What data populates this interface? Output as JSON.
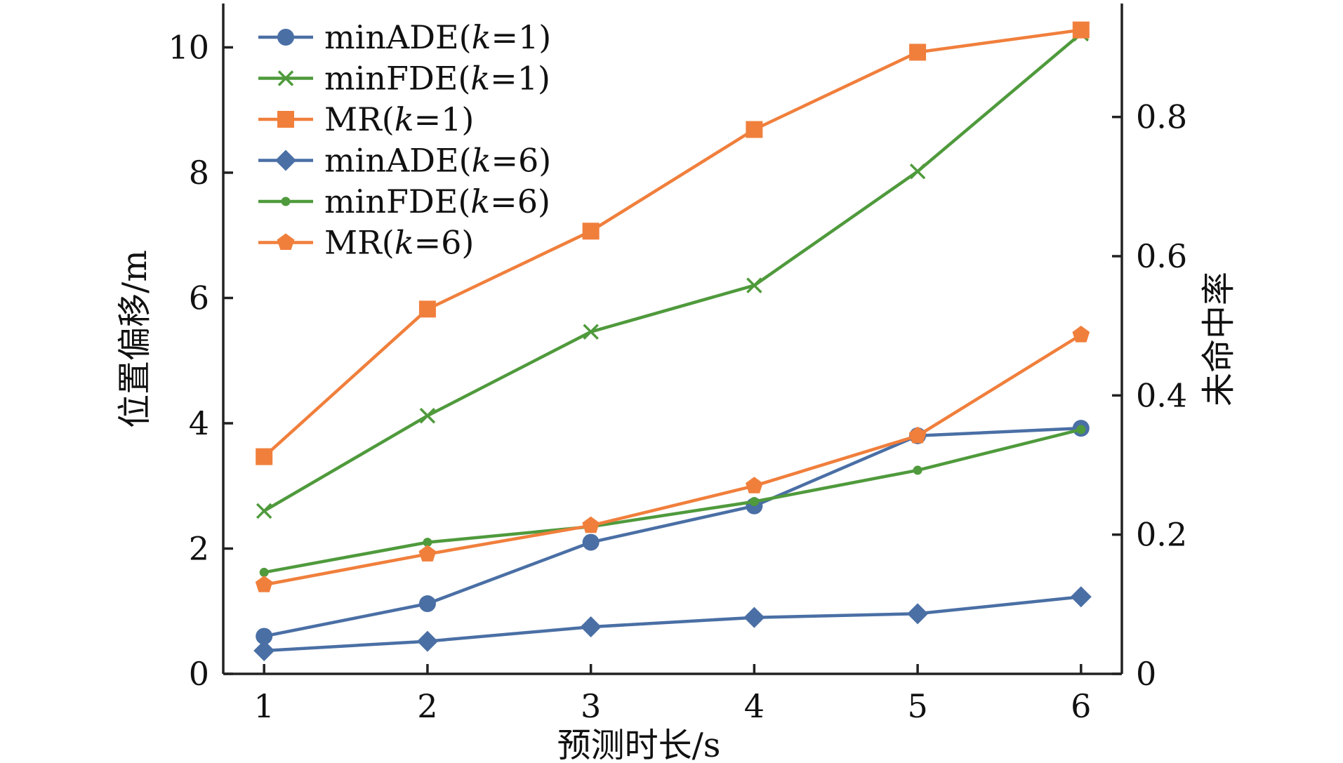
{
  "chart_data": {
    "type": "line",
    "x": [
      1,
      2,
      3,
      4,
      5,
      6
    ],
    "xlabel": "预测时长/s",
    "ylabel_left": "位置偏移/m",
    "ylabel_right": "未命中率",
    "xlim": [
      0.75,
      6.25
    ],
    "ylim_left": [
      0,
      10.7
    ],
    "ylim_right": [
      0,
      0.963
    ],
    "xticks": [
      1,
      2,
      3,
      4,
      5,
      6
    ],
    "yticks_left": [
      0,
      2,
      4,
      6,
      8,
      10
    ],
    "yticks_right": [
      0,
      0.2,
      0.4,
      0.6,
      0.8
    ],
    "yticks_right_labels": [
      "0",
      "0.2",
      "0.4",
      "0.6",
      "0.8"
    ],
    "grid": false,
    "legend_position": "top-left",
    "series": [
      {
        "name": "minADE(k=1)",
        "legend_parts": [
          "minADE(",
          "k",
          "=1)"
        ],
        "axis": "left",
        "marker": "circle",
        "color": "#4a6fa5",
        "values": [
          0.6,
          1.12,
          2.1,
          2.68,
          3.8,
          3.92
        ]
      },
      {
        "name": "minFDE(k=1)",
        "legend_parts": [
          "minFDE(",
          "k",
          "=1)"
        ],
        "axis": "left",
        "marker": "x",
        "color": "#4f9a3c",
        "values": [
          2.6,
          4.12,
          5.46,
          6.2,
          8.02,
          10.22
        ]
      },
      {
        "name": "MR(k=1)",
        "legend_parts": [
          "MR(",
          "k",
          "=1)"
        ],
        "axis": "right",
        "marker": "square",
        "color": "#f07f3c",
        "values": [
          0.312,
          0.524,
          0.636,
          0.782,
          0.893,
          0.925
        ]
      },
      {
        "name": "minADE(k=6)",
        "legend_parts": [
          "minADE(",
          "k",
          "=6)"
        ],
        "axis": "left",
        "marker": "diamond",
        "color": "#4a6fa5",
        "values": [
          0.37,
          0.52,
          0.75,
          0.9,
          0.96,
          1.23
        ]
      },
      {
        "name": "minFDE(k=6)",
        "legend_parts": [
          "minFDE(",
          "k",
          "=6)"
        ],
        "axis": "left",
        "marker": "dot",
        "color": "#4f9a3c",
        "values": [
          1.62,
          2.1,
          2.35,
          2.75,
          3.25,
          3.9
        ]
      },
      {
        "name": "MR(k=6)",
        "legend_parts": [
          "MR(",
          "k",
          "=6)"
        ],
        "axis": "right",
        "marker": "pentagon",
        "color": "#f07f3c",
        "values": [
          0.128,
          0.172,
          0.213,
          0.27,
          0.342,
          0.487
        ]
      }
    ]
  }
}
